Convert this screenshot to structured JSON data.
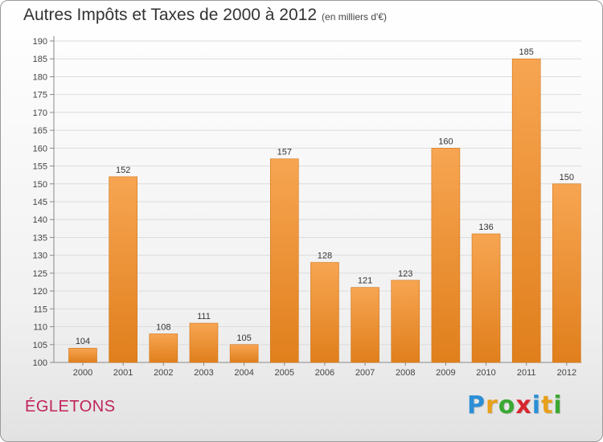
{
  "header": {
    "title": "Autres Impôts et Taxes de 2000 à 2012",
    "subtitle": "(en milliers d'€)"
  },
  "footer": {
    "city": "ÉGLETONS",
    "logo_letters": [
      {
        "ch": "P",
        "color": "#2a8fd6"
      },
      {
        "ch": "r",
        "color": "#e8a01c"
      },
      {
        "ch": "o",
        "color": "#3aa832"
      },
      {
        "ch": "x",
        "color": "#d8262e"
      },
      {
        "ch": "i",
        "color": "#2a8fd6"
      },
      {
        "ch": "t",
        "color": "#e8a01c"
      },
      {
        "ch": "i",
        "color": "#3aa832"
      }
    ]
  },
  "chart_data": {
    "type": "bar",
    "title": "Autres Impôts et Taxes de 2000 à 2012",
    "subtitle": "(en milliers d'€)",
    "categories": [
      "2000",
      "2001",
      "2002",
      "2003",
      "2004",
      "2005",
      "2006",
      "2007",
      "2008",
      "2009",
      "2010",
      "2011",
      "2012"
    ],
    "values": [
      104,
      152,
      108,
      111,
      105,
      157,
      128,
      121,
      123,
      160,
      136,
      185,
      150
    ],
    "xlabel": "",
    "ylabel": "",
    "ylim": [
      100,
      190
    ],
    "ytick_step": 5,
    "grid": true,
    "data_labels": true,
    "bar_color_top": "#f7a552",
    "bar_color_bottom": "#e07f1c"
  }
}
